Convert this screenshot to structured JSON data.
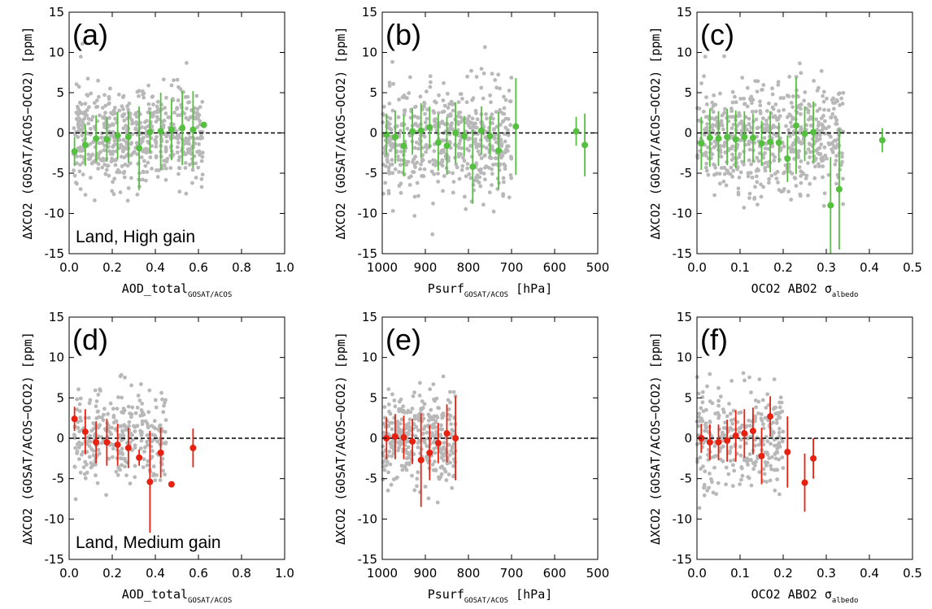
{
  "chart_data": [
    {
      "type": "scatter",
      "panel": "(a)",
      "note": "Land, High gain",
      "xlabel": "AOD_total",
      "xlabel_sub": "GOSAT/ACOS",
      "xlabel_tail": "",
      "ylabel": "ΔXCO2 (GOSAT/ACOS−OCO2) [ppm]",
      "xlim": [
        0,
        1
      ],
      "ylim": [
        -15,
        15
      ],
      "xticks": [
        0,
        0.2,
        0.4,
        0.6,
        0.8,
        1.0
      ],
      "xtick_labels": [
        "0.0",
        "0.2",
        "0.4",
        "0.6",
        "0.8",
        "1.0"
      ],
      "yticks": [
        -15,
        -10,
        -5,
        0,
        5,
        10,
        15
      ],
      "ytick_labels": [
        "-15",
        "-10",
        "-5",
        "0",
        "5",
        "10",
        "15"
      ],
      "color": "#55c040",
      "scatter_color": "#b8b8b8",
      "reference_line": 0,
      "scatter": {
        "n": 600,
        "x_range": [
          0.02,
          0.62
        ],
        "y_mean": -0.3,
        "y_sd": 3.2,
        "seed": 11
      },
      "binned": [
        {
          "x": 0.025,
          "y": -2.3,
          "err": 1.8
        },
        {
          "x": 0.075,
          "y": -1.5,
          "err": 2.6
        },
        {
          "x": 0.125,
          "y": -0.7,
          "err": 2.9
        },
        {
          "x": 0.175,
          "y": -0.8,
          "err": 2.8
        },
        {
          "x": 0.225,
          "y": -0.3,
          "err": 2.9
        },
        {
          "x": 0.275,
          "y": -0.5,
          "err": 3.2
        },
        {
          "x": 0.325,
          "y": -1.9,
          "err": 5.2
        },
        {
          "x": 0.375,
          "y": 0.1,
          "err": 2.6
        },
        {
          "x": 0.425,
          "y": 0.2,
          "err": 4.8
        },
        {
          "x": 0.475,
          "y": 0.4,
          "err": 3.8
        },
        {
          "x": 0.525,
          "y": 0.6,
          "err": 4.6
        },
        {
          "x": 0.575,
          "y": 0.4,
          "err": 4.8
        },
        {
          "x": 0.625,
          "y": 1.0,
          "err": 0.3
        }
      ]
    },
    {
      "type": "scatter",
      "panel": "(b)",
      "note": "",
      "xlabel": "Psurf",
      "xlabel_sub": "GOSAT/ACOS",
      "xlabel_tail": " [hPa]",
      "ylabel": "ΔXCO2 (GOSAT/ACOS−OCO2) [ppm]",
      "xlim": [
        1000,
        500
      ],
      "ylim": [
        -15,
        15
      ],
      "xticks": [
        1000,
        900,
        800,
        700,
        600,
        500
      ],
      "xtick_labels": [
        "1000",
        "900",
        "800",
        "700",
        "600",
        "500"
      ],
      "yticks": [
        -15,
        -10,
        -5,
        0,
        5,
        10,
        15
      ],
      "ytick_labels": [
        "-15",
        "-10",
        "-5",
        "0",
        "5",
        "10",
        "15"
      ],
      "color": "#55c040",
      "scatter_color": "#b8b8b8",
      "reference_line": 0,
      "scatter": {
        "n": 550,
        "x_range": [
          1000,
          700
        ],
        "y_mean": -0.6,
        "y_sd": 3.3,
        "seed": 23
      },
      "binned": [
        {
          "x": 990,
          "y": -0.2,
          "err": 2.6
        },
        {
          "x": 970,
          "y": -0.5,
          "err": 3.3
        },
        {
          "x": 950,
          "y": -1.6,
          "err": 3.8
        },
        {
          "x": 930,
          "y": 0.2,
          "err": 2.9
        },
        {
          "x": 910,
          "y": 0.3,
          "err": 3.4
        },
        {
          "x": 890,
          "y": 0.7,
          "err": 2.6
        },
        {
          "x": 870,
          "y": -1.2,
          "err": 3.5
        },
        {
          "x": 850,
          "y": -1.6,
          "err": 3.6
        },
        {
          "x": 830,
          "y": 0.0,
          "err": 3.8
        },
        {
          "x": 810,
          "y": -0.4,
          "err": 2.5
        },
        {
          "x": 790,
          "y": -4.2,
          "err": 4.6
        },
        {
          "x": 770,
          "y": 0.3,
          "err": 3.0
        },
        {
          "x": 750,
          "y": -0.4,
          "err": 2.5
        },
        {
          "x": 730,
          "y": -2.2,
          "err": 4.8
        },
        {
          "x": 690,
          "y": 0.8,
          "err": 6.0
        },
        {
          "x": 550,
          "y": 0.2,
          "err": 1.8
        },
        {
          "x": 530,
          "y": -1.5,
          "err": 3.9
        }
      ]
    },
    {
      "type": "scatter",
      "panel": "(c)",
      "note": "",
      "xlabel": "OCO2 ABO2 σ",
      "xlabel_sub": "albedo",
      "xlabel_tail": "",
      "ylabel": "ΔXCO2 (GOSAT/ACOS−OCO2) [ppm]",
      "xlim": [
        0,
        0.5
      ],
      "ylim": [
        -15,
        15
      ],
      "xticks": [
        0,
        0.1,
        0.2,
        0.3,
        0.4,
        0.5
      ],
      "xtick_labels": [
        "0.0",
        "0.1",
        "0.2",
        "0.3",
        "0.4",
        "0.5"
      ],
      "yticks": [
        -15,
        -10,
        -5,
        0,
        5,
        10,
        15
      ],
      "ytick_labels": [
        "-15",
        "-10",
        "-5",
        "0",
        "5",
        "10",
        "15"
      ],
      "color": "#55c040",
      "scatter_color": "#b8b8b8",
      "reference_line": 0,
      "scatter": {
        "n": 600,
        "x_range": [
          0.0,
          0.34
        ],
        "y_mean": -0.8,
        "y_sd": 3.4,
        "seed": 37
      },
      "binned": [
        {
          "x": 0.01,
          "y": -1.3,
          "err": 3.3
        },
        {
          "x": 0.03,
          "y": -0.6,
          "err": 3.6
        },
        {
          "x": 0.05,
          "y": -0.7,
          "err": 3.4
        },
        {
          "x": 0.07,
          "y": -0.5,
          "err": 3.5
        },
        {
          "x": 0.09,
          "y": -0.8,
          "err": 3.6
        },
        {
          "x": 0.11,
          "y": -0.5,
          "err": 3.2
        },
        {
          "x": 0.13,
          "y": -0.6,
          "err": 3.0
        },
        {
          "x": 0.15,
          "y": -1.3,
          "err": 2.8
        },
        {
          "x": 0.17,
          "y": -1.1,
          "err": 3.8
        },
        {
          "x": 0.19,
          "y": -1.2,
          "err": 2.5
        },
        {
          "x": 0.21,
          "y": -3.2,
          "err": 2.9
        },
        {
          "x": 0.23,
          "y": 0.9,
          "err": 6.0
        },
        {
          "x": 0.25,
          "y": -0.1,
          "err": 3.4
        },
        {
          "x": 0.27,
          "y": 0.1,
          "err": 3.8
        },
        {
          "x": 0.31,
          "y": -9.0,
          "err": 6.0
        },
        {
          "x": 0.33,
          "y": -7.0,
          "err": 7.5
        },
        {
          "x": 0.43,
          "y": -0.9,
          "err": 1.5
        }
      ]
    },
    {
      "type": "scatter",
      "panel": "(d)",
      "note": "Land, Medium gain",
      "xlabel": "AOD_total",
      "xlabel_sub": "GOSAT/ACOS",
      "xlabel_tail": "",
      "ylabel": "ΔXCO2 (GOSAT/ACOS−OCO2) [ppm]",
      "xlim": [
        0,
        1
      ],
      "ylim": [
        -15,
        15
      ],
      "xticks": [
        0,
        0.2,
        0.4,
        0.6,
        0.8,
        1.0
      ],
      "xtick_labels": [
        "0.0",
        "0.2",
        "0.4",
        "0.6",
        "0.8",
        "1.0"
      ],
      "yticks": [
        -15,
        -10,
        -5,
        0,
        5,
        10,
        15
      ],
      "ytick_labels": [
        "-15",
        "-10",
        "-5",
        "0",
        "5",
        "10",
        "15"
      ],
      "color": "#e82010",
      "scatter_color": "#b8b8b8",
      "reference_line": 0,
      "scatter": {
        "n": 300,
        "x_range": [
          0.02,
          0.45
        ],
        "y_mean": 0.0,
        "y_sd": 3.0,
        "seed": 41
      },
      "binned": [
        {
          "x": 0.025,
          "y": 2.4,
          "err": 1.5
        },
        {
          "x": 0.075,
          "y": 0.8,
          "err": 2.8
        },
        {
          "x": 0.125,
          "y": -0.5,
          "err": 2.6
        },
        {
          "x": 0.175,
          "y": -0.5,
          "err": 2.9
        },
        {
          "x": 0.225,
          "y": -0.8,
          "err": 2.6
        },
        {
          "x": 0.275,
          "y": -1.2,
          "err": 2.5
        },
        {
          "x": 0.325,
          "y": -2.4,
          "err": 1.0
        },
        {
          "x": 0.375,
          "y": -5.4,
          "err": 6.3
        },
        {
          "x": 0.425,
          "y": -1.8,
          "err": 3.1
        },
        {
          "x": 0.475,
          "y": -5.7,
          "err": 0.2
        },
        {
          "x": 0.575,
          "y": -1.2,
          "err": 2.4
        }
      ]
    },
    {
      "type": "scatter",
      "panel": "(e)",
      "note": "",
      "xlabel": "Psurf",
      "xlabel_sub": "GOSAT/ACOS",
      "xlabel_tail": " [hPa]",
      "ylabel": "ΔXCO2 (GOSAT/ACOS−OCO2) [ppm]",
      "xlim": [
        1000,
        500
      ],
      "ylim": [
        -15,
        15
      ],
      "xticks": [
        1000,
        900,
        800,
        700,
        600,
        500
      ],
      "xtick_labels": [
        "1000",
        "900",
        "800",
        "700",
        "600",
        "500"
      ],
      "yticks": [
        -15,
        -10,
        -5,
        0,
        5,
        10,
        15
      ],
      "ytick_labels": [
        "-15",
        "-10",
        "-5",
        "0",
        "5",
        "10",
        "15"
      ],
      "color": "#e82010",
      "scatter_color": "#b8b8b8",
      "reference_line": 0,
      "scatter": {
        "n": 350,
        "x_range": [
          1000,
          830
        ],
        "y_mean": 0.0,
        "y_sd": 2.8,
        "seed": 53
      },
      "binned": [
        {
          "x": 990,
          "y": 0.0,
          "err": 2.6
        },
        {
          "x": 970,
          "y": 0.2,
          "err": 2.8
        },
        {
          "x": 950,
          "y": 0.1,
          "err": 2.7
        },
        {
          "x": 930,
          "y": -0.4,
          "err": 2.8
        },
        {
          "x": 910,
          "y": -2.7,
          "err": 5.8
        },
        {
          "x": 890,
          "y": -1.8,
          "err": 3.4
        },
        {
          "x": 870,
          "y": -0.6,
          "err": 2.5
        },
        {
          "x": 850,
          "y": 0.6,
          "err": 3.6
        },
        {
          "x": 830,
          "y": 0.0,
          "err": 5.2
        }
      ]
    },
    {
      "type": "scatter",
      "panel": "(f)",
      "note": "",
      "xlabel": "OCO2 ABO2 σ",
      "xlabel_sub": "albedo",
      "xlabel_tail": "",
      "ylabel": "ΔXCO2 (GOSAT/ACOS−OCO2) [ppm]",
      "xlim": [
        0,
        0.5
      ],
      "ylim": [
        -15,
        15
      ],
      "xticks": [
        0,
        0.1,
        0.2,
        0.3,
        0.4,
        0.5
      ],
      "xtick_labels": [
        "0.0",
        "0.1",
        "0.2",
        "0.3",
        "0.4",
        "0.5"
      ],
      "yticks": [
        -15,
        -10,
        -5,
        0,
        5,
        10,
        15
      ],
      "ytick_labels": [
        "-15",
        "-10",
        "-5",
        "0",
        "5",
        "10",
        "15"
      ],
      "color": "#e82010",
      "scatter_color": "#b8b8b8",
      "reference_line": 0,
      "scatter": {
        "n": 300,
        "x_range": [
          0.0,
          0.2
        ],
        "y_mean": -0.2,
        "y_sd": 2.9,
        "seed": 67
      },
      "binned": [
        {
          "x": 0.01,
          "y": 0.0,
          "err": 1.8
        },
        {
          "x": 0.03,
          "y": -0.5,
          "err": 2.2
        },
        {
          "x": 0.05,
          "y": -0.5,
          "err": 2.2
        },
        {
          "x": 0.07,
          "y": -0.3,
          "err": 2.6
        },
        {
          "x": 0.09,
          "y": 0.3,
          "err": 3.2
        },
        {
          "x": 0.11,
          "y": 0.6,
          "err": 3.0
        },
        {
          "x": 0.13,
          "y": 0.9,
          "err": 2.9
        },
        {
          "x": 0.15,
          "y": -2.2,
          "err": 3.5
        },
        {
          "x": 0.17,
          "y": 2.7,
          "err": 2.5
        },
        {
          "x": 0.21,
          "y": -1.7,
          "err": 4.4
        },
        {
          "x": 0.25,
          "y": -5.5,
          "err": 3.6
        },
        {
          "x": 0.27,
          "y": -2.5,
          "err": 2.5
        }
      ]
    }
  ]
}
